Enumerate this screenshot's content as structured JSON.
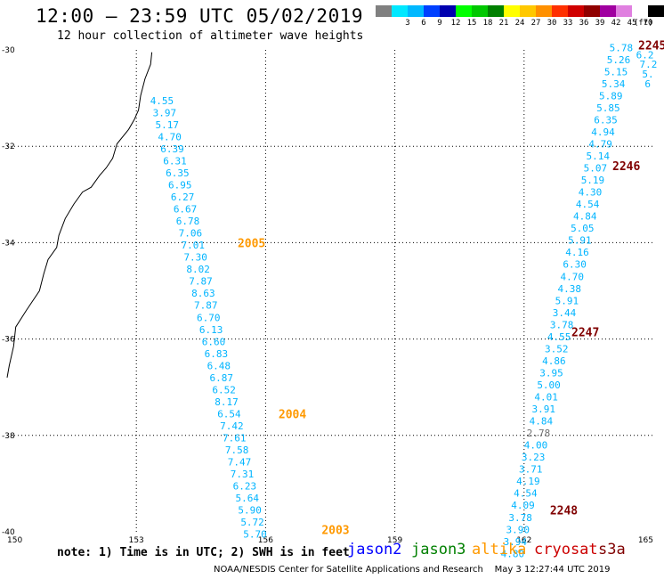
{
  "header": {
    "title": "12:00 – 23:59 UTC 05/02/2019",
    "subtitle": "12 hour collection of altimeter wave heights"
  },
  "colorbar": {
    "unit": "(ft)",
    "levels": [
      {
        "label": "",
        "color": "#808080"
      },
      {
        "label": "3",
        "color": "#00e8ff"
      },
      {
        "label": "6",
        "color": "#00b8ff"
      },
      {
        "label": "9",
        "color": "#0040ff"
      },
      {
        "label": "12",
        "color": "#0000b0"
      },
      {
        "label": "15",
        "color": "#00ff00"
      },
      {
        "label": "18",
        "color": "#00c800"
      },
      {
        "label": "21",
        "color": "#008000"
      },
      {
        "label": "24",
        "color": "#ffff00"
      },
      {
        "label": "27",
        "color": "#ffc800"
      },
      {
        "label": "30",
        "color": "#ff9000"
      },
      {
        "label": "33",
        "color": "#ff3000"
      },
      {
        "label": "36",
        "color": "#d00000"
      },
      {
        "label": "39",
        "color": "#900000"
      },
      {
        "label": "42",
        "color": "#a000a0"
      },
      {
        "label": "45",
        "color": "#e080e0"
      },
      {
        "label": "70",
        "color": "#ffffff"
      },
      {
        "label": "",
        "color": "#000000"
      }
    ]
  },
  "map": {
    "lon_range": [
      150,
      165
    ],
    "lat_range": [
      -40,
      -30
    ],
    "x_ticks": [
      {
        "lon": 150,
        "label": "150"
      },
      {
        "lon": 153,
        "label": "153"
      },
      {
        "lon": 156,
        "label": "156"
      },
      {
        "lon": 159,
        "label": "159"
      },
      {
        "lon": 162,
        "label": "162"
      },
      {
        "lon": 165,
        "label": "165"
      }
    ],
    "y_ticks": [
      {
        "lat": -30,
        "label": "-30"
      },
      {
        "lat": -32,
        "label": "-32"
      },
      {
        "lat": -34,
        "label": "-34"
      },
      {
        "lat": -36,
        "label": "-36"
      },
      {
        "lat": -38,
        "label": "-38"
      },
      {
        "lat": -40,
        "label": "-40"
      }
    ],
    "coastline": [
      [
        153.36,
        -30.05
      ],
      [
        153.33,
        -30.3
      ],
      [
        153.2,
        -30.6
      ],
      [
        153.1,
        -30.95
      ],
      [
        153.05,
        -31.25
      ],
      [
        152.95,
        -31.45
      ],
      [
        152.82,
        -31.65
      ],
      [
        152.55,
        -31.95
      ],
      [
        152.45,
        -32.25
      ],
      [
        152.3,
        -32.45
      ],
      [
        152.15,
        -32.6
      ],
      [
        151.95,
        -32.85
      ],
      [
        151.75,
        -32.95
      ],
      [
        151.55,
        -33.2
      ],
      [
        151.35,
        -33.5
      ],
      [
        151.2,
        -33.85
      ],
      [
        151.15,
        -34.1
      ],
      [
        150.95,
        -34.35
      ],
      [
        150.85,
        -34.65
      ],
      [
        150.75,
        -35.0
      ],
      [
        150.45,
        -35.4
      ],
      [
        150.2,
        -35.75
      ],
      [
        150.15,
        -36.15
      ],
      [
        150.05,
        -36.55
      ],
      [
        150.0,
        -36.8
      ]
    ],
    "tracks": [
      {
        "id": "2005",
        "color": "#00b4ff",
        "label_color": "#ff9900",
        "label": {
          "lon": 155.35,
          "lat": -34.0
        },
        "points": [
          {
            "lon": 153.32,
            "lat": -31.05,
            "v": "4.55"
          },
          {
            "lon": 153.38,
            "lat": -31.3,
            "v": "3.97"
          },
          {
            "lon": 153.44,
            "lat": -31.55,
            "v": "5.17"
          },
          {
            "lon": 153.5,
            "lat": -31.8,
            "v": "4.70"
          },
          {
            "lon": 153.56,
            "lat": -32.05,
            "v": "6.39"
          },
          {
            "lon": 153.62,
            "lat": -32.3,
            "v": "6.31"
          },
          {
            "lon": 153.68,
            "lat": -32.55,
            "v": "6.35"
          },
          {
            "lon": 153.74,
            "lat": -32.8,
            "v": "6.95"
          },
          {
            "lon": 153.8,
            "lat": -33.05,
            "v": "6.27"
          },
          {
            "lon": 153.86,
            "lat": -33.3,
            "v": "6.67"
          },
          {
            "lon": 153.92,
            "lat": -33.55,
            "v": "6.78"
          },
          {
            "lon": 153.98,
            "lat": -33.8,
            "v": "7.06"
          },
          {
            "lon": 154.04,
            "lat": -34.05,
            "v": "7.01"
          },
          {
            "lon": 154.1,
            "lat": -34.3,
            "v": "7.30"
          },
          {
            "lon": 154.16,
            "lat": -34.55,
            "v": "8.02"
          },
          {
            "lon": 154.22,
            "lat": -34.8,
            "v": "7.87"
          },
          {
            "lon": 154.28,
            "lat": -35.05,
            "v": "8.63"
          },
          {
            "lon": 154.34,
            "lat": -35.3,
            "v": "7.87"
          },
          {
            "lon": 154.4,
            "lat": -35.55,
            "v": "6.70"
          },
          {
            "lon": 154.46,
            "lat": -35.8,
            "v": "6.13"
          },
          {
            "lon": 154.52,
            "lat": -36.05,
            "v": "6.60"
          }
        ]
      },
      {
        "id": "2004",
        "color": "#00b4ff",
        "label_color": "#ff9900",
        "label": {
          "lon": 156.3,
          "lat": -37.55
        },
        "points": [
          {
            "lon": 154.58,
            "lat": -36.3,
            "v": "6.83"
          },
          {
            "lon": 154.64,
            "lat": -36.55,
            "v": "6.48"
          },
          {
            "lon": 154.7,
            "lat": -36.8,
            "v": "6.87"
          },
          {
            "lon": 154.76,
            "lat": -37.05,
            "v": "6.52"
          },
          {
            "lon": 154.82,
            "lat": -37.3,
            "v": "8.17"
          },
          {
            "lon": 154.88,
            "lat": -37.55,
            "v": "6.54"
          },
          {
            "lon": 154.94,
            "lat": -37.8,
            "v": "7.42"
          },
          {
            "lon": 155.0,
            "lat": -38.05,
            "v": "7.61"
          },
          {
            "lon": 155.06,
            "lat": -38.3,
            "v": "7.58"
          },
          {
            "lon": 155.12,
            "lat": -38.55,
            "v": "7.47"
          },
          {
            "lon": 155.18,
            "lat": -38.8,
            "v": "7.31"
          },
          {
            "lon": 155.24,
            "lat": -39.05,
            "v": "6.23"
          },
          {
            "lon": 155.3,
            "lat": -39.3,
            "v": "5.64"
          }
        ]
      },
      {
        "id": "2003",
        "color": "#00b4ff",
        "label_color": "#ff9900",
        "label": {
          "lon": 157.3,
          "lat": -39.95
        },
        "points": [
          {
            "lon": 155.36,
            "lat": -39.55,
            "v": "5.90"
          },
          {
            "lon": 155.42,
            "lat": -39.8,
            "v": "5.72"
          },
          {
            "lon": 155.48,
            "lat": -40.05,
            "v": "5.70"
          }
        ]
      },
      {
        "id": "2245",
        "color": "#00b4ff",
        "label_color": "#800000",
        "label": {
          "lon": 164.65,
          "lat": -29.9
        },
        "points": [
          {
            "lon": 163.98,
            "lat": -29.95,
            "v": "5.78"
          },
          {
            "lon": 163.92,
            "lat": -30.2,
            "v": "5.26"
          },
          {
            "lon": 163.86,
            "lat": -30.45,
            "v": "5.15"
          },
          {
            "lon": 163.8,
            "lat": -30.7,
            "v": "5.34"
          },
          {
            "lon": 163.74,
            "lat": -30.95,
            "v": "5.89"
          },
          {
            "lon": 163.68,
            "lat": -31.2,
            "v": "5.85"
          },
          {
            "lon": 163.62,
            "lat": -31.45,
            "v": "6.35"
          },
          {
            "lon": 163.56,
            "lat": -31.7,
            "v": "4.94"
          },
          {
            "lon": 163.5,
            "lat": -31.95,
            "v": "4.79"
          },
          {
            "lon": 164.6,
            "lat": -30.1,
            "v": "6.2"
          },
          {
            "lon": 164.68,
            "lat": -30.3,
            "v": "7.2"
          },
          {
            "lon": 164.74,
            "lat": -30.5,
            "v": "5."
          },
          {
            "lon": 164.8,
            "lat": -30.7,
            "v": "6"
          }
        ]
      },
      {
        "id": "2246",
        "color": "#00b4ff",
        "label_color": "#800000",
        "label": {
          "lon": 164.05,
          "lat": -32.4
        },
        "points": [
          {
            "lon": 163.44,
            "lat": -32.2,
            "v": "5.14"
          },
          {
            "lon": 163.38,
            "lat": -32.45,
            "v": "5.07"
          },
          {
            "lon": 163.32,
            "lat": -32.7,
            "v": "5.19"
          },
          {
            "lon": 163.26,
            "lat": -32.95,
            "v": "4.30"
          },
          {
            "lon": 163.2,
            "lat": -33.2,
            "v": "4.54"
          },
          {
            "lon": 163.14,
            "lat": -33.45,
            "v": "4.84"
          },
          {
            "lon": 163.08,
            "lat": -33.7,
            "v": "5.05"
          },
          {
            "lon": 163.02,
            "lat": -33.95,
            "v": "5.91"
          },
          {
            "lon": 162.96,
            "lat": -34.2,
            "v": "4.16"
          },
          {
            "lon": 162.9,
            "lat": -34.45,
            "v": "6.30"
          },
          {
            "lon": 162.84,
            "lat": -34.7,
            "v": "4.70"
          },
          {
            "lon": 162.78,
            "lat": -34.95,
            "v": "4.38"
          },
          {
            "lon": 162.72,
            "lat": -35.2,
            "v": "5.91"
          },
          {
            "lon": 162.66,
            "lat": -35.45,
            "v": "3.44"
          },
          {
            "lon": 162.6,
            "lat": -35.7,
            "v": "3.78"
          },
          {
            "lon": 162.54,
            "lat": -35.95,
            "v": "4.55"
          }
        ]
      },
      {
        "id": "2247",
        "color": "#00b4ff",
        "label_color": "#800000",
        "label": {
          "lon": 163.1,
          "lat": -35.85
        },
        "points": [
          {
            "lon": 162.48,
            "lat": -36.2,
            "v": "3.52"
          },
          {
            "lon": 162.42,
            "lat": -36.45,
            "v": "4.86"
          },
          {
            "lon": 162.36,
            "lat": -36.7,
            "v": "3.95"
          },
          {
            "lon": 162.3,
            "lat": -36.95,
            "v": "5.00"
          },
          {
            "lon": 162.24,
            "lat": -37.2,
            "v": "4.01"
          },
          {
            "lon": 162.18,
            "lat": -37.45,
            "v": "3.91"
          },
          {
            "lon": 162.12,
            "lat": -37.7,
            "v": "4.84"
          },
          {
            "lon": 162.06,
            "lat": -37.95,
            "v": "2.78",
            "color": "#707070"
          },
          {
            "lon": 162.0,
            "lat": -38.2,
            "v": "4.00"
          },
          {
            "lon": 161.94,
            "lat": -38.45,
            "v": "3.23"
          },
          {
            "lon": 161.88,
            "lat": -38.7,
            "v": "3.71"
          },
          {
            "lon": 161.82,
            "lat": -38.95,
            "v": "4.19"
          },
          {
            "lon": 161.76,
            "lat": -39.2,
            "v": "4.54"
          }
        ]
      },
      {
        "id": "2248",
        "color": "#00b4ff",
        "label_color": "#800000",
        "label": {
          "lon": 162.6,
          "lat": -39.55
        },
        "points": [
          {
            "lon": 161.7,
            "lat": -39.45,
            "v": "4.09"
          },
          {
            "lon": 161.64,
            "lat": -39.7,
            "v": "3.78"
          },
          {
            "lon": 161.58,
            "lat": -39.95,
            "v": "3.90"
          },
          {
            "lon": 161.52,
            "lat": -40.2,
            "v": "3.94"
          },
          {
            "lon": 161.46,
            "lat": -40.45,
            "v": "4.80"
          }
        ]
      }
    ]
  },
  "footer": {
    "note": "note: 1) Time is in UTC; 2) SWH is in feet",
    "satellites": [
      {
        "name": "jason2",
        "color": "#0000ff"
      },
      {
        "name": "jason3",
        "color": "#008000"
      },
      {
        "name": "altika",
        "color": "#ff9900"
      },
      {
        "name": "cryosat",
        "color": "#cc0000"
      },
      {
        "name": "s3a",
        "color": "#800000"
      }
    ],
    "credit": "NOAA/NESDIS Center for Satellite Applications and Research",
    "timestamp": "May  3 12:27:44 UTC 2019"
  }
}
